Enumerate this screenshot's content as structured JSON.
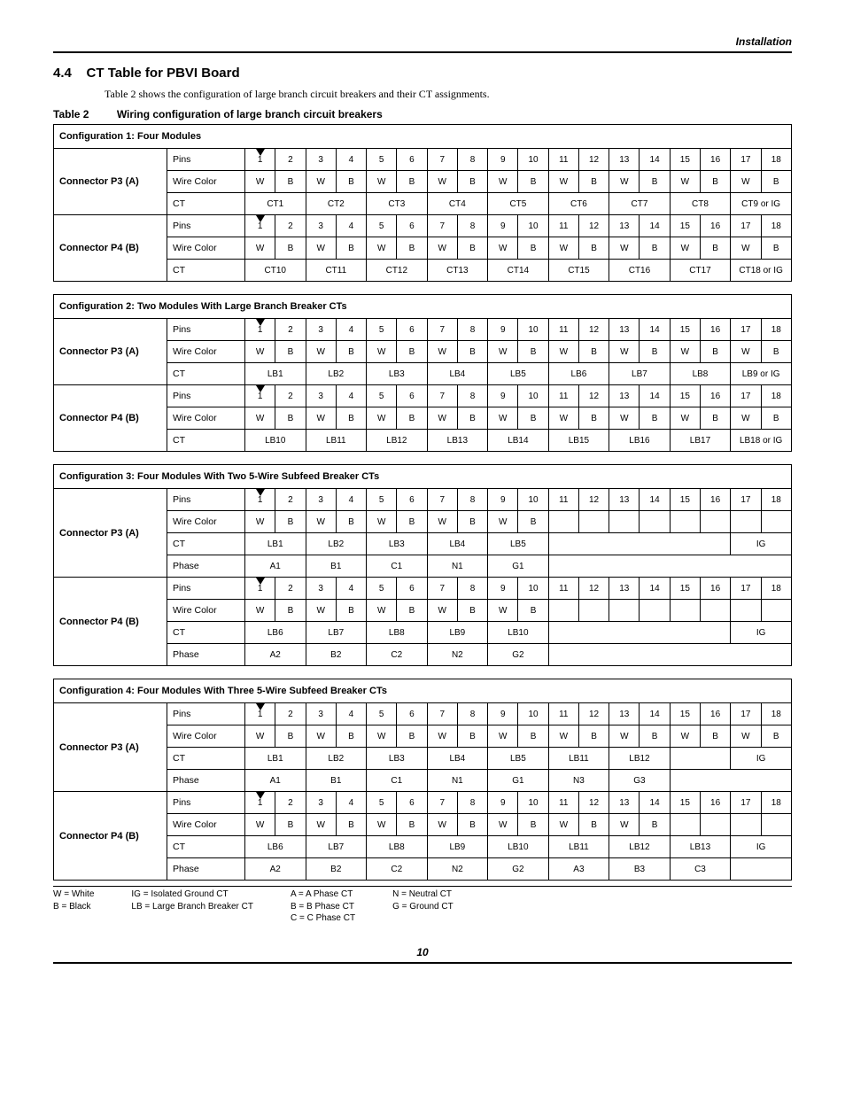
{
  "header": {
    "right": "Installation"
  },
  "section": {
    "number": "4.4",
    "title": "CT Table for PBVI Board",
    "intro": "Table 2 shows the configuration of large branch circuit breakers and their CT assignments.",
    "table_label": "Table 2",
    "table_title": "Wiring configuration of large branch circuit breakers"
  },
  "pins": [
    "1",
    "2",
    "3",
    "4",
    "5",
    "6",
    "7",
    "8",
    "9",
    "10",
    "11",
    "12",
    "13",
    "14",
    "15",
    "16",
    "17",
    "18"
  ],
  "wb18": [
    "W",
    "B",
    "W",
    "B",
    "W",
    "B",
    "W",
    "B",
    "W",
    "B",
    "W",
    "B",
    "W",
    "B",
    "W",
    "B",
    "W",
    "B"
  ],
  "wb10": [
    "W",
    "B",
    "W",
    "B",
    "W",
    "B",
    "W",
    "B",
    "W",
    "B",
    "",
    "",
    "",
    "",
    "",
    "",
    "",
    ""
  ],
  "wb14": [
    "W",
    "B",
    "W",
    "B",
    "W",
    "B",
    "W",
    "B",
    "W",
    "B",
    "W",
    "B",
    "W",
    "B",
    "",
    "",
    "",
    ""
  ],
  "row_labels": {
    "pins": "Pins",
    "wire": "Wire Color",
    "ct": "CT",
    "phase": "Phase"
  },
  "connectors": {
    "p3": "Connector P3 (A)",
    "p4": "Connector P4 (B)"
  },
  "config1": {
    "title": "Configuration 1: Four Modules",
    "p3_ct": [
      "CT1",
      "CT2",
      "CT3",
      "CT4",
      "CT5",
      "CT6",
      "CT7",
      "CT8",
      "CT9 or IG"
    ],
    "p4_ct": [
      "CT10",
      "CT11",
      "CT12",
      "CT13",
      "CT14",
      "CT15",
      "CT16",
      "CT17",
      "CT18 or IG"
    ]
  },
  "config2": {
    "title": "Configuration 2: Two Modules With Large Branch Breaker CTs",
    "p3_ct": [
      "LB1",
      "LB2",
      "LB3",
      "LB4",
      "LB5",
      "LB6",
      "LB7",
      "LB8",
      "LB9 or IG"
    ],
    "p4_ct": [
      "LB10",
      "LB11",
      "LB12",
      "LB13",
      "LB14",
      "LB15",
      "LB16",
      "LB17",
      "LB18 or IG"
    ]
  },
  "config3": {
    "title": "Configuration 3: Four Modules With Two 5-Wire Subfeed Breaker CTs",
    "p3_ct": [
      "LB1",
      "LB2",
      "LB3",
      "LB4",
      "LB5"
    ],
    "p3_ct_tail": "IG",
    "p3_phase": [
      "A1",
      "B1",
      "C1",
      "N1",
      "G1"
    ],
    "p4_ct": [
      "LB6",
      "LB7",
      "LB8",
      "LB9",
      "LB10"
    ],
    "p4_ct_tail": "IG",
    "p4_phase": [
      "A2",
      "B2",
      "C2",
      "N2",
      "G2"
    ]
  },
  "config4": {
    "title": "Configuration 4: Four Modules With Three 5-Wire Subfeed Breaker CTs",
    "p3_ct": [
      "LB1",
      "LB2",
      "LB3",
      "LB4",
      "LB5",
      "LB11",
      "LB12"
    ],
    "p3_ct_tail": "IG",
    "p3_phase": [
      "A1",
      "B1",
      "C1",
      "N1",
      "G1",
      "N3",
      "G3"
    ],
    "p4_ct": [
      "LB6",
      "LB7",
      "LB8",
      "LB9",
      "LB10",
      "LB11",
      "LB12",
      "LB13"
    ],
    "p4_ct_tail": "IG",
    "p4_phase": [
      "A2",
      "B2",
      "C2",
      "N2",
      "G2",
      "A3",
      "B3",
      "C3"
    ]
  },
  "legend": {
    "col1": [
      "W = White",
      "B = Black"
    ],
    "col2": [
      "IG = Isolated Ground CT",
      "LB = Large Branch Breaker CT"
    ],
    "col3": [
      "A = A Phase CT",
      "B = B Phase CT",
      "C = C Phase CT"
    ],
    "col4": [
      "N = Neutral CT",
      "G = Ground CT"
    ]
  },
  "footer": {
    "page": "10"
  },
  "colors": {
    "text": "#000000",
    "bg": "#ffffff",
    "border": "#000000"
  }
}
